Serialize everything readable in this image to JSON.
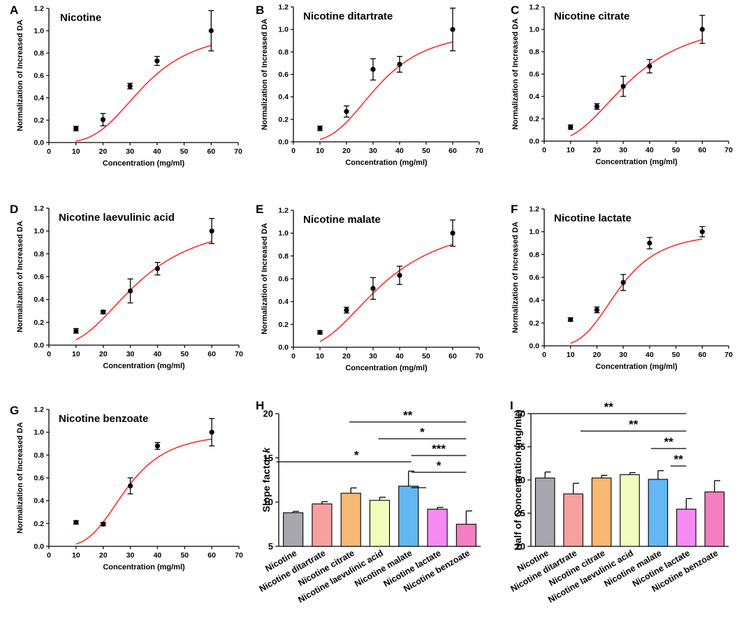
{
  "figure": {
    "line_panels": [
      {
        "label": "A",
        "title": "Nicotine",
        "ylabel": "Normalization of Increased DA",
        "xlabel": "Concentration (mg/ml)",
        "x": [
          10,
          20,
          30,
          40,
          60
        ],
        "y": [
          0.125,
          0.205,
          0.505,
          0.73,
          1.0
        ],
        "err": [
          0.02,
          0.055,
          0.025,
          0.04,
          0.18
        ],
        "curve": {
          "type": "hill",
          "top": 1.0,
          "half": 35,
          "n": 3.5
        }
      },
      {
        "label": "B",
        "title": "Nicotine ditartrate",
        "ylabel": "Normalization of Increased DA",
        "xlabel": "Concentration (mg/ml)",
        "x": [
          10,
          20,
          30,
          40,
          60
        ],
        "y": [
          0.12,
          0.27,
          0.645,
          0.69,
          1.0
        ],
        "err": [
          0.02,
          0.05,
          0.095,
          0.07,
          0.19
        ],
        "curve": {
          "type": "hill",
          "top": 1.0,
          "half": 32,
          "n": 3.3
        }
      },
      {
        "label": "C",
        "title": "Nicotine citrate",
        "ylabel": "Normalization of Increased DA",
        "xlabel": "Concentration (mg/ml)",
        "x": [
          10,
          20,
          30,
          40,
          60
        ],
        "y": [
          0.125,
          0.31,
          0.49,
          0.67,
          1.0
        ],
        "err": [
          0.02,
          0.025,
          0.09,
          0.06,
          0.125
        ],
        "curve": {
          "type": "hill",
          "top": 1.1,
          "half": 33,
          "n": 2.6
        }
      },
      {
        "label": "D",
        "title": "Nicotine laevulinic acid",
        "ylabel": "Normalization of Increased DA",
        "xlabel": "Concentration (mg/ml)",
        "x": [
          10,
          20,
          30,
          40,
          60
        ],
        "y": [
          0.125,
          0.29,
          0.475,
          0.67,
          1.0
        ],
        "err": [
          0.02,
          0.015,
          0.105,
          0.055,
          0.11
        ],
        "curve": {
          "type": "hill",
          "top": 1.1,
          "half": 33,
          "n": 2.6
        }
      },
      {
        "label": "E",
        "title": "Nicotine malate",
        "ylabel": "Normalization of Increased DA",
        "xlabel": "Concentration (mg/ml)",
        "x": [
          10,
          20,
          30,
          40,
          60
        ],
        "y": [
          0.13,
          0.325,
          0.515,
          0.63,
          1.0
        ],
        "err": [
          0.015,
          0.025,
          0.095,
          0.08,
          0.115
        ],
        "curve": {
          "type": "hill",
          "top": 1.12,
          "half": 34,
          "n": 2.5
        }
      },
      {
        "label": "F",
        "title": "Nicotine lactate",
        "ylabel": "Normalization of Increased DA",
        "xlabel": "Concentration (mg/ml)",
        "x": [
          10,
          20,
          30,
          40,
          60
        ],
        "y": [
          0.23,
          0.315,
          0.555,
          0.9,
          1.0
        ],
        "err": [
          0.015,
          0.025,
          0.07,
          0.05,
          0.045
        ],
        "curve": {
          "type": "hill",
          "top": 1.0,
          "half": 28.5,
          "n": 3.6
        }
      },
      {
        "label": "G",
        "title": "Nicotine benzoate",
        "ylabel": "Normalization of Increased DA",
        "xlabel": "Concentration (mg/ml)",
        "x": [
          10,
          20,
          30,
          40,
          60
        ],
        "y": [
          0.21,
          0.195,
          0.53,
          0.88,
          1.0
        ],
        "err": [
          0.015,
          0.015,
          0.07,
          0.03,
          0.12
        ],
        "curve": {
          "type": "hill",
          "top": 1.0,
          "half": 28.5,
          "n": 3.7
        }
      }
    ],
    "line_axes": {
      "xlim": [
        0,
        70
      ],
      "xticks": [
        0,
        10,
        20,
        30,
        40,
        50,
        60,
        70
      ],
      "ylim": [
        0,
        1.2
      ],
      "yticks": [
        "0.0",
        "0.2",
        "0.4",
        "0.6",
        "0.8",
        "1.0",
        "1.2"
      ]
    },
    "bar_panels": [
      {
        "label": "H",
        "ylabel": "Slope factor k",
        "ylabel_main": "Slope factor ",
        "ylabel_var": "k",
        "ylim": [
          5,
          20
        ],
        "yticks": [
          5,
          10,
          15,
          20
        ],
        "categories": [
          "Nicotine",
          "Nicotine ditartrate",
          "Nicotine citrate",
          "Nicotine laevulinic acid",
          "Nicotine malate",
          "Nicotine lactate",
          "Nicotine benzoate"
        ],
        "values": [
          8.8,
          9.8,
          11.0,
          10.2,
          11.8,
          9.2,
          7.5
        ],
        "err": [
          0.15,
          0.25,
          0.6,
          0.35,
          1.7,
          0.2,
          1.5
        ],
        "colors": [
          "#a7a7ad",
          "#f6a0a0",
          "#f7b874",
          "#f2fcbc",
          "#63b7f2",
          "#f58bf3",
          "#f57ec2"
        ],
        "sig": [
          {
            "from": 2,
            "to": 6,
            "stars": "**"
          },
          {
            "from": 3,
            "to": 6,
            "stars": "*"
          },
          {
            "from": 4,
            "to": 6,
            "stars": "***"
          },
          {
            "from": 0,
            "to": 4,
            "stars": "*"
          },
          {
            "from": 4,
            "to": 6,
            "stars": "*"
          },
          {
            "from": 4,
            "to": 5,
            "stars": ""
          }
        ]
      },
      {
        "label": "I",
        "ylabel": "Half of Concentration (mg/mL)",
        "ylim": [
          20,
          40
        ],
        "yticks": [
          20,
          25,
          30,
          35,
          40
        ],
        "categories": [
          "Nicotine",
          "Nicotine ditartrate",
          "Nicotine citrate",
          "Nicotine laevulinic acid",
          "Nicotine malate",
          "Nicotine lactate",
          "Nicotine benzoate"
        ],
        "values": [
          30.3,
          27.9,
          30.3,
          30.8,
          30.1,
          25.6,
          28.2
        ],
        "err": [
          0.9,
          1.6,
          0.4,
          0.3,
          1.3,
          1.6,
          1.7
        ],
        "colors": [
          "#a7a7ad",
          "#f6a0a0",
          "#f7b874",
          "#f2fcbc",
          "#63b7f2",
          "#f58bf3",
          "#f57ec2"
        ],
        "sig": [
          {
            "from": 0,
            "to": 5,
            "stars": "**"
          },
          {
            "from": 2,
            "to": 5,
            "stars": "**"
          },
          {
            "from": 4,
            "to": 5,
            "stars": "**"
          },
          {
            "from": 4.6,
            "to": 5,
            "stars": "**"
          }
        ]
      }
    ]
  },
  "chart_data": [
    {
      "type": "scatter",
      "title": "Nicotine",
      "xlabel": "Concentration (mg/ml)",
      "ylabel": "Normalization of Increased DA",
      "x": [
        10,
        20,
        30,
        40,
        60
      ],
      "y": [
        0.125,
        0.205,
        0.505,
        0.73,
        1.0
      ],
      "xlim": [
        0,
        70
      ],
      "ylim": [
        0,
        1.2
      ]
    },
    {
      "type": "scatter",
      "title": "Nicotine ditartrate",
      "xlabel": "Concentration (mg/ml)",
      "ylabel": "Normalization of Increased DA",
      "x": [
        10,
        20,
        30,
        40,
        60
      ],
      "y": [
        0.12,
        0.27,
        0.645,
        0.69,
        1.0
      ],
      "xlim": [
        0,
        70
      ],
      "ylim": [
        0,
        1.2
      ]
    },
    {
      "type": "scatter",
      "title": "Nicotine citrate",
      "xlabel": "Concentration (mg/ml)",
      "ylabel": "Normalization of Increased DA",
      "x": [
        10,
        20,
        30,
        40,
        60
      ],
      "y": [
        0.125,
        0.31,
        0.49,
        0.67,
        1.0
      ],
      "xlim": [
        0,
        70
      ],
      "ylim": [
        0,
        1.2
      ]
    },
    {
      "type": "scatter",
      "title": "Nicotine laevulinic acid",
      "xlabel": "Concentration (mg/ml)",
      "ylabel": "Normalization of Increased DA",
      "x": [
        10,
        20,
        30,
        40,
        60
      ],
      "y": [
        0.125,
        0.29,
        0.475,
        0.67,
        1.0
      ],
      "xlim": [
        0,
        70
      ],
      "ylim": [
        0,
        1.2
      ]
    },
    {
      "type": "scatter",
      "title": "Nicotine malate",
      "xlabel": "Concentration (mg/ml)",
      "ylabel": "Normalization of Increased DA",
      "x": [
        10,
        20,
        30,
        40,
        60
      ],
      "y": [
        0.13,
        0.325,
        0.515,
        0.63,
        1.0
      ],
      "xlim": [
        0,
        70
      ],
      "ylim": [
        0,
        1.2
      ]
    },
    {
      "type": "scatter",
      "title": "Nicotine lactate",
      "xlabel": "Concentration (mg/ml)",
      "ylabel": "Normalization of Increased DA",
      "x": [
        10,
        20,
        30,
        40,
        60
      ],
      "y": [
        0.23,
        0.315,
        0.555,
        0.9,
        1.0
      ],
      "xlim": [
        0,
        70
      ],
      "ylim": [
        0,
        1.2
      ]
    },
    {
      "type": "scatter",
      "title": "Nicotine benzoate",
      "xlabel": "Concentration (mg/ml)",
      "ylabel": "Normalization of Increased DA",
      "x": [
        10,
        20,
        30,
        40,
        60
      ],
      "y": [
        0.21,
        0.195,
        0.53,
        0.88,
        1.0
      ],
      "xlim": [
        0,
        70
      ],
      "ylim": [
        0,
        1.2
      ]
    },
    {
      "type": "bar",
      "title": "",
      "ylabel": "Slope factor k",
      "categories": [
        "Nicotine",
        "Nicotine ditartrate",
        "Nicotine citrate",
        "Nicotine laevulinic acid",
        "Nicotine malate",
        "Nicotine lactate",
        "Nicotine benzoate"
      ],
      "values": [
        8.8,
        9.8,
        11.0,
        10.2,
        11.8,
        9.2,
        7.5
      ],
      "ylim": [
        5,
        20
      ]
    },
    {
      "type": "bar",
      "title": "",
      "ylabel": "Half of Concentration (mg/mL)",
      "categories": [
        "Nicotine",
        "Nicotine ditartrate",
        "Nicotine citrate",
        "Nicotine laevulinic acid",
        "Nicotine malate",
        "Nicotine lactate",
        "Nicotine benzoate"
      ],
      "values": [
        30.3,
        27.9,
        30.3,
        30.8,
        30.1,
        25.6,
        28.2
      ],
      "ylim": [
        20,
        40
      ]
    }
  ]
}
